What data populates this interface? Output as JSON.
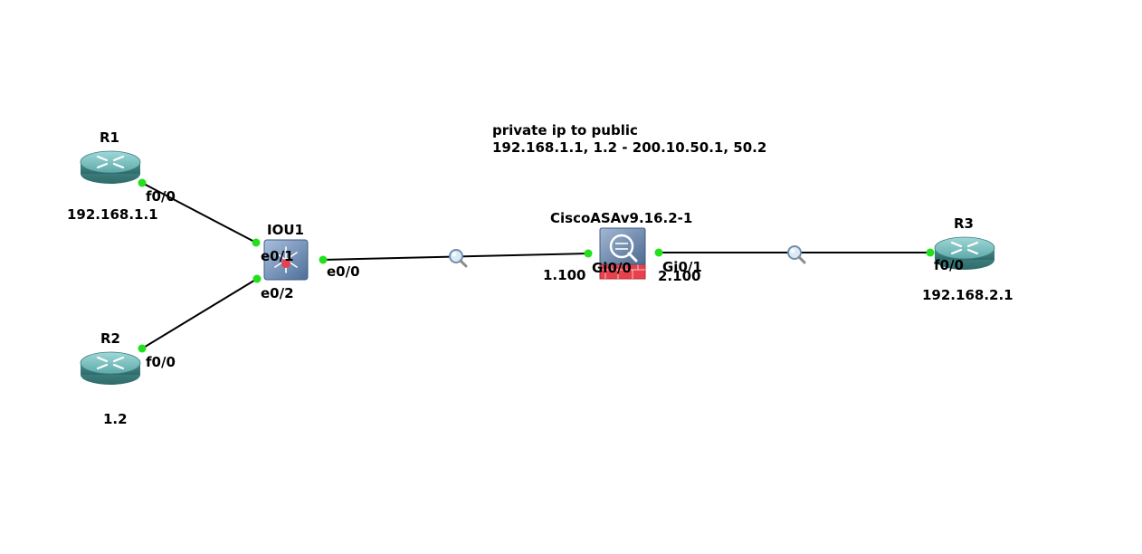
{
  "annotation": {
    "line1": "private ip to public",
    "line2": "192.168.1.1, 1.2 - 200.10.50.1, 50.2"
  },
  "devices": {
    "r1": {
      "name": "R1",
      "ip": "192.168.1.1",
      "type": "router-icon"
    },
    "r2": {
      "name": "R2",
      "ip": "1.2",
      "type": "router-icon"
    },
    "r3": {
      "name": "R3",
      "ip": "192.168.2.1",
      "type": "router-icon"
    },
    "iou1": {
      "name": "IOU1",
      "type": "switch-icon"
    },
    "asa": {
      "name": "CiscoASAv9.16.2-1",
      "type": "firewall-icon"
    }
  },
  "interfaces": {
    "r1_f00": "f0/0",
    "r2_f00": "f0/0",
    "r3_f00": "f0/0",
    "iou1_e01": "e0/1",
    "iou1_e02": "e0/2",
    "iou1_e00": "e0/0",
    "asa_gi00": "Gi0/0",
    "asa_gi01": "Gi0/1",
    "asa_gi00_ip": "1.100",
    "asa_gi01_ip": "2.100"
  },
  "colors": {
    "link": "#000000",
    "port_up": "#22e01c",
    "router_body": "#4f9b9b",
    "router_top": "#7cc4c4",
    "switch_body": "#6f8fb8",
    "firewall_red": "#e8404c"
  }
}
